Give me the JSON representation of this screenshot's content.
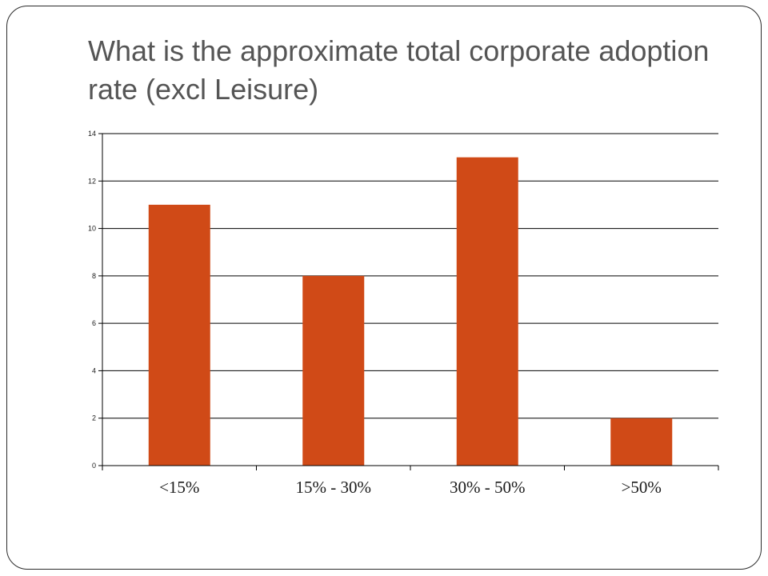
{
  "slide": {
    "title": "What is the approximate total corporate adoption rate (excl Leisure)"
  },
  "colors": {
    "bar": "#d04a17",
    "gridline": "#000000",
    "frame": "#2a2a2a",
    "title": "#555555"
  },
  "chart_data": {
    "type": "bar",
    "title": "",
    "xlabel": "",
    "ylabel": "",
    "categories": [
      "<15%",
      "15% - 30%",
      "30% - 50%",
      ">50%"
    ],
    "values": [
      11,
      8,
      13,
      2
    ],
    "ylim": [
      0,
      14
    ],
    "yticks": [
      0,
      2,
      4,
      6,
      8,
      10,
      12,
      14
    ],
    "grid": true,
    "legend": "none"
  }
}
